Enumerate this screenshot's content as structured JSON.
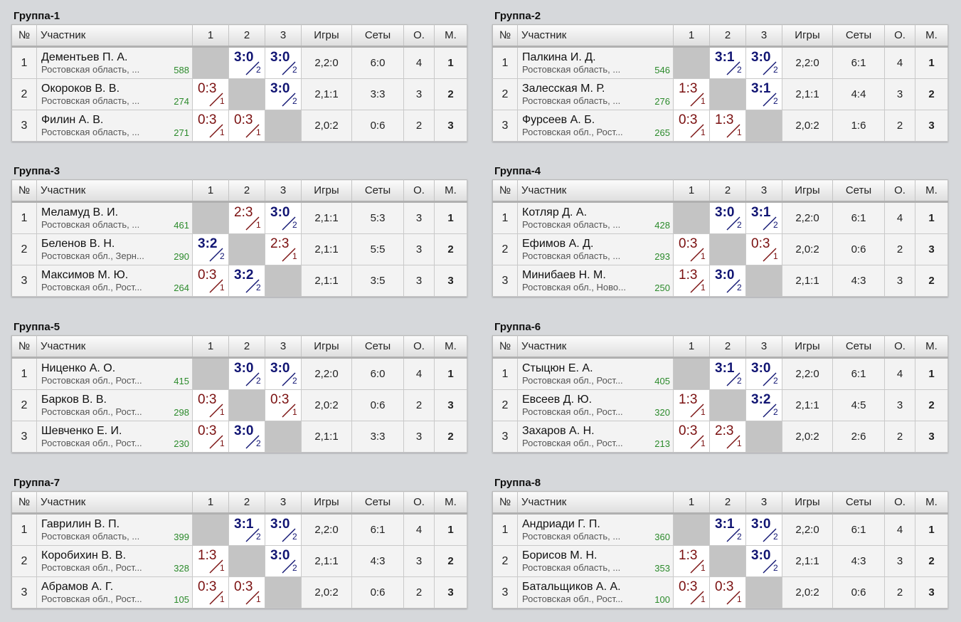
{
  "headers": {
    "no": "№",
    "participant": "Участник",
    "c1": "1",
    "c2": "2",
    "c3": "3",
    "games": "Игры",
    "sets": "Сеты",
    "points": "О.",
    "place": "М."
  },
  "colors": {
    "win": "#111573",
    "loss": "#7a1010",
    "rating": "#2b8a2b",
    "self_cell": "#c4c4c4"
  },
  "groups": [
    {
      "title": "Группа-1",
      "rows": [
        {
          "num": "1",
          "name": "Дементьев П. А.",
          "region": "Ростовская область, ...",
          "rating": "588",
          "cells": [
            null,
            {
              "score": "3:0",
              "sub": "2",
              "win": true
            },
            {
              "score": "3:0",
              "sub": "2",
              "win": true
            }
          ],
          "games": "2,2:0",
          "sets": "6:0",
          "points": "4",
          "place": "1"
        },
        {
          "num": "2",
          "name": "Окороков В. В.",
          "region": "Ростовская область, ...",
          "rating": "274",
          "cells": [
            {
              "score": "0:3",
              "sub": "1",
              "win": false
            },
            null,
            {
              "score": "3:0",
              "sub": "2",
              "win": true
            }
          ],
          "games": "2,1:1",
          "sets": "3:3",
          "points": "3",
          "place": "2"
        },
        {
          "num": "3",
          "name": "Филин А. В.",
          "region": "Ростовская область, ...",
          "rating": "271",
          "cells": [
            {
              "score": "0:3",
              "sub": "1",
              "win": false
            },
            {
              "score": "0:3",
              "sub": "1",
              "win": false
            },
            null
          ],
          "games": "2,0:2",
          "sets": "0:6",
          "points": "2",
          "place": "3"
        }
      ]
    },
    {
      "title": "Группа-2",
      "rows": [
        {
          "num": "1",
          "name": "Палкина И. Д.",
          "region": "Ростовская область, ...",
          "rating": "546",
          "cells": [
            null,
            {
              "score": "3:1",
              "sub": "2",
              "win": true
            },
            {
              "score": "3:0",
              "sub": "2",
              "win": true
            }
          ],
          "games": "2,2:0",
          "sets": "6:1",
          "points": "4",
          "place": "1"
        },
        {
          "num": "2",
          "name": "Залесская М. Р.",
          "region": "Ростовская область, ...",
          "rating": "276",
          "cells": [
            {
              "score": "1:3",
              "sub": "1",
              "win": false
            },
            null,
            {
              "score": "3:1",
              "sub": "2",
              "win": true
            }
          ],
          "games": "2,1:1",
          "sets": "4:4",
          "points": "3",
          "place": "2"
        },
        {
          "num": "3",
          "name": "Фурсеев А. Б.",
          "region": "Ростовская обл., Рост...",
          "rating": "265",
          "cells": [
            {
              "score": "0:3",
              "sub": "1",
              "win": false
            },
            {
              "score": "1:3",
              "sub": "1",
              "win": false
            },
            null
          ],
          "games": "2,0:2",
          "sets": "1:6",
          "points": "2",
          "place": "3"
        }
      ]
    },
    {
      "title": "Группа-3",
      "rows": [
        {
          "num": "1",
          "name": "Меламуд В. И.",
          "region": "Ростовская область, ...",
          "rating": "461",
          "cells": [
            null,
            {
              "score": "2:3",
              "sub": "1",
              "win": false
            },
            {
              "score": "3:0",
              "sub": "2",
              "win": true
            }
          ],
          "games": "2,1:1",
          "sets": "5:3",
          "points": "3",
          "place": "1"
        },
        {
          "num": "2",
          "name": "Беленов В. Н.",
          "region": "Ростовская обл., Зерн...",
          "rating": "290",
          "cells": [
            {
              "score": "3:2",
              "sub": "2",
              "win": true
            },
            null,
            {
              "score": "2:3",
              "sub": "1",
              "win": false
            }
          ],
          "games": "2,1:1",
          "sets": "5:5",
          "points": "3",
          "place": "2"
        },
        {
          "num": "3",
          "name": "Максимов М. Ю.",
          "region": "Ростовская обл., Рост...",
          "rating": "264",
          "cells": [
            {
              "score": "0:3",
              "sub": "1",
              "win": false
            },
            {
              "score": "3:2",
              "sub": "2",
              "win": true
            },
            null
          ],
          "games": "2,1:1",
          "sets": "3:5",
          "points": "3",
          "place": "3"
        }
      ]
    },
    {
      "title": "Группа-4",
      "rows": [
        {
          "num": "1",
          "name": "Котляр Д. А.",
          "region": "Ростовская область, ...",
          "rating": "428",
          "cells": [
            null,
            {
              "score": "3:0",
              "sub": "2",
              "win": true
            },
            {
              "score": "3:1",
              "sub": "2",
              "win": true
            }
          ],
          "games": "2,2:0",
          "sets": "6:1",
          "points": "4",
          "place": "1"
        },
        {
          "num": "2",
          "name": "Ефимов А. Д.",
          "region": "Ростовская область, ...",
          "rating": "293",
          "cells": [
            {
              "score": "0:3",
              "sub": "1",
              "win": false
            },
            null,
            {
              "score": "0:3",
              "sub": "1",
              "win": false
            }
          ],
          "games": "2,0:2",
          "sets": "0:6",
          "points": "2",
          "place": "3"
        },
        {
          "num": "3",
          "name": "Минибаев Н. М.",
          "region": "Ростовская обл., Ново...",
          "rating": "250",
          "cells": [
            {
              "score": "1:3",
              "sub": "1",
              "win": false
            },
            {
              "score": "3:0",
              "sub": "2",
              "win": true
            },
            null
          ],
          "games": "2,1:1",
          "sets": "4:3",
          "points": "3",
          "place": "2"
        }
      ]
    },
    {
      "title": "Группа-5",
      "rows": [
        {
          "num": "1",
          "name": "Ниценко А. О.",
          "region": "Ростовская обл., Рост...",
          "rating": "415",
          "cells": [
            null,
            {
              "score": "3:0",
              "sub": "2",
              "win": true
            },
            {
              "score": "3:0",
              "sub": "2",
              "win": true
            }
          ],
          "games": "2,2:0",
          "sets": "6:0",
          "points": "4",
          "place": "1"
        },
        {
          "num": "2",
          "name": "Барков В. В.",
          "region": "Ростовская обл., Рост...",
          "rating": "298",
          "cells": [
            {
              "score": "0:3",
              "sub": "1",
              "win": false
            },
            null,
            {
              "score": "0:3",
              "sub": "1",
              "win": false
            }
          ],
          "games": "2,0:2",
          "sets": "0:6",
          "points": "2",
          "place": "3"
        },
        {
          "num": "3",
          "name": "Шевченко Е. И.",
          "region": "Ростовская обл., Рост...",
          "rating": "230",
          "cells": [
            {
              "score": "0:3",
              "sub": "1",
              "win": false
            },
            {
              "score": "3:0",
              "sub": "2",
              "win": true
            },
            null
          ],
          "games": "2,1:1",
          "sets": "3:3",
          "points": "3",
          "place": "2"
        }
      ]
    },
    {
      "title": "Группа-6",
      "rows": [
        {
          "num": "1",
          "name": "Стыцюн Е. А.",
          "region": "Ростовская обл., Рост...",
          "rating": "405",
          "cells": [
            null,
            {
              "score": "3:1",
              "sub": "2",
              "win": true
            },
            {
              "score": "3:0",
              "sub": "2",
              "win": true
            }
          ],
          "games": "2,2:0",
          "sets": "6:1",
          "points": "4",
          "place": "1"
        },
        {
          "num": "2",
          "name": "Евсеев Д. Ю.",
          "region": "Ростовская обл., Рост...",
          "rating": "320",
          "cells": [
            {
              "score": "1:3",
              "sub": "1",
              "win": false
            },
            null,
            {
              "score": "3:2",
              "sub": "2",
              "win": true
            }
          ],
          "games": "2,1:1",
          "sets": "4:5",
          "points": "3",
          "place": "2"
        },
        {
          "num": "3",
          "name": "Захаров А. Н.",
          "region": "Ростовская обл., Рост...",
          "rating": "213",
          "cells": [
            {
              "score": "0:3",
              "sub": "1",
              "win": false
            },
            {
              "score": "2:3",
              "sub": "1",
              "win": false
            },
            null
          ],
          "games": "2,0:2",
          "sets": "2:6",
          "points": "2",
          "place": "3"
        }
      ]
    },
    {
      "title": "Группа-7",
      "rows": [
        {
          "num": "1",
          "name": "Гаврилин В. П.",
          "region": "Ростовская область, ...",
          "rating": "399",
          "cells": [
            null,
            {
              "score": "3:1",
              "sub": "2",
              "win": true
            },
            {
              "score": "3:0",
              "sub": "2",
              "win": true
            }
          ],
          "games": "2,2:0",
          "sets": "6:1",
          "points": "4",
          "place": "1"
        },
        {
          "num": "2",
          "name": "Коробихин В. В.",
          "region": "Ростовская обл., Рост...",
          "rating": "328",
          "cells": [
            {
              "score": "1:3",
              "sub": "1",
              "win": false
            },
            null,
            {
              "score": "3:0",
              "sub": "2",
              "win": true
            }
          ],
          "games": "2,1:1",
          "sets": "4:3",
          "points": "3",
          "place": "2"
        },
        {
          "num": "3",
          "name": "Абрамов А. Г.",
          "region": "Ростовская обл., Рост...",
          "rating": "105",
          "cells": [
            {
              "score": "0:3",
              "sub": "1",
              "win": false
            },
            {
              "score": "0:3",
              "sub": "1",
              "win": false
            },
            null
          ],
          "games": "2,0:2",
          "sets": "0:6",
          "points": "2",
          "place": "3"
        }
      ]
    },
    {
      "title": "Группа-8",
      "rows": [
        {
          "num": "1",
          "name": "Андриади Г. П.",
          "region": "Ростовская область, ...",
          "rating": "360",
          "cells": [
            null,
            {
              "score": "3:1",
              "sub": "2",
              "win": true
            },
            {
              "score": "3:0",
              "sub": "2",
              "win": true
            }
          ],
          "games": "2,2:0",
          "sets": "6:1",
          "points": "4",
          "place": "1"
        },
        {
          "num": "2",
          "name": "Борисов М. Н.",
          "region": "Ростовская область, ...",
          "rating": "353",
          "cells": [
            {
              "score": "1:3",
              "sub": "1",
              "win": false
            },
            null,
            {
              "score": "3:0",
              "sub": "2",
              "win": true
            }
          ],
          "games": "2,1:1",
          "sets": "4:3",
          "points": "3",
          "place": "2"
        },
        {
          "num": "3",
          "name": "Батальщиков А. А.",
          "region": "Ростовская обл., Рост...",
          "rating": "100",
          "cells": [
            {
              "score": "0:3",
              "sub": "1",
              "win": false
            },
            {
              "score": "0:3",
              "sub": "1",
              "win": false
            },
            null
          ],
          "games": "2,0:2",
          "sets": "0:6",
          "points": "2",
          "place": "3"
        }
      ]
    }
  ]
}
